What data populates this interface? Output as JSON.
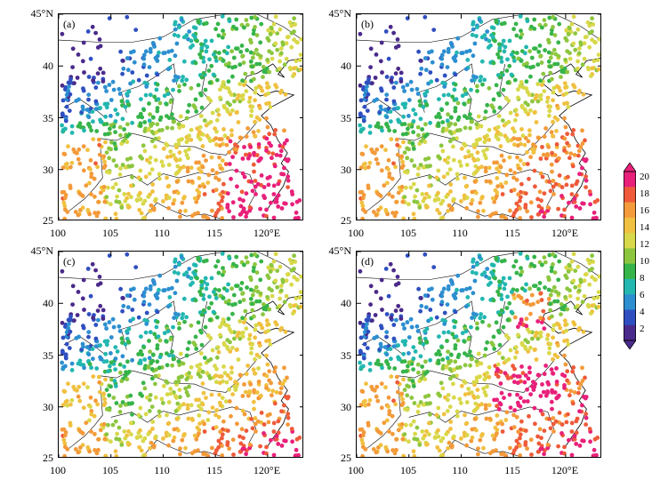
{
  "panels": [
    {
      "label": "(a)"
    },
    {
      "label": "(b)"
    },
    {
      "label": "(c)"
    },
    {
      "label": "(d)"
    }
  ],
  "axes": {
    "lat_labels": [
      "45°N",
      "40",
      "35",
      "30",
      "25"
    ],
    "lat_values": [
      45,
      40,
      35,
      30,
      25
    ],
    "lon_labels": [
      "100",
      "105",
      "110",
      "115",
      "120°E"
    ],
    "lon_values": [
      100,
      105,
      110,
      115,
      120
    ],
    "lon_range": [
      100,
      123.5
    ],
    "lat_range": [
      25,
      45
    ]
  },
  "colorbar": {
    "ticks": [
      "20",
      "18",
      "16",
      "14",
      "12",
      "10",
      "8",
      "6",
      "4",
      "2"
    ],
    "values": [
      20,
      18,
      16,
      14,
      12,
      10,
      8,
      6,
      4,
      2
    ],
    "range": [
      1,
      21
    ],
    "colors": [
      "#4a2a8a",
      "#2f4fc0",
      "#2d8fd0",
      "#23b7b0",
      "#36b44a",
      "#8cc63f",
      "#d8d84a",
      "#f0c040",
      "#f39a3a",
      "#ee5a3a",
      "#e8207a"
    ]
  }
}
